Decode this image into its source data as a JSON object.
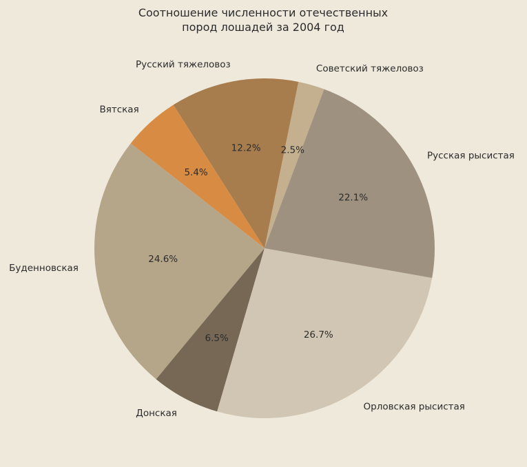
{
  "chart_data": {
    "type": "pie",
    "title_lines": [
      "Соотношение численности отечественных",
      "пород лошадей за 2004 год"
    ],
    "categories": [
      "Советский тяжеловоз",
      "Русский тяжеловоз",
      "Вятская",
      "Буденновская",
      "Донская",
      "Орловская рысистая",
      "Русская рысистая"
    ],
    "values": [
      2.5,
      12.2,
      5.4,
      24.6,
      6.5,
      26.7,
      22.1
    ],
    "percent_labels": [
      "2.5%",
      "12.2%",
      "5.4%",
      "24.6%",
      "6.5%",
      "26.7%",
      "22.1%"
    ],
    "colors": [
      "#c4b08f",
      "#a87d4e",
      "#d88b42",
      "#b5a68a",
      "#766854",
      "#d1c6b3",
      "#9e9180"
    ],
    "start_angle_deg": 69.5,
    "direction": "counterclockwise",
    "legend": "none"
  },
  "colors": {
    "background": "#efe9dc",
    "text": "#2b2b2b"
  }
}
